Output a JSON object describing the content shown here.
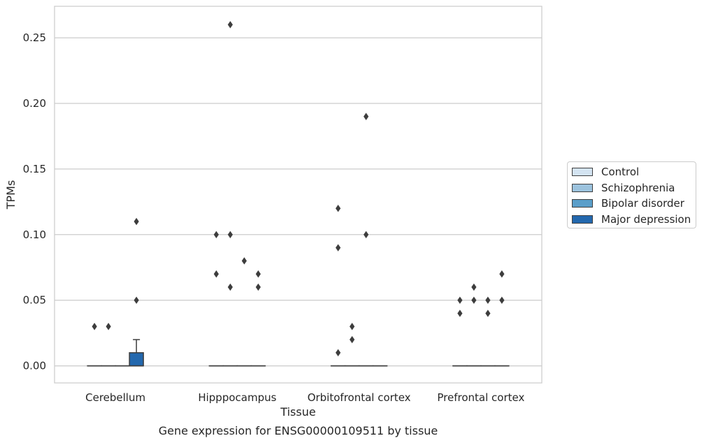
{
  "chart_data": {
    "type": "box",
    "title": "",
    "caption": "Gene expression for ENSG00000109511 by tissue",
    "xlabel": "Tissue",
    "ylabel": "TPMs",
    "ylim": [
      -0.013,
      0.274
    ],
    "yticks": [
      0.0,
      0.05,
      0.1,
      0.15,
      0.2,
      0.25
    ],
    "ytick_labels": [
      "0.00",
      "0.05",
      "0.10",
      "0.15",
      "0.20",
      "0.25"
    ],
    "grid": "horizontal",
    "legend_position": "right",
    "categories": [
      "Cerebellum",
      "Hipppocampus",
      "Orbitofrontal cortex",
      "Prefrontal cortex"
    ],
    "series": [
      {
        "name": "Control",
        "color": "#d4e4f2",
        "boxes": [
          {
            "q1": 0,
            "median": 0,
            "q3": 0,
            "whisker_low": 0,
            "whisker_high": 0,
            "outliers": [
              0.03
            ]
          },
          {
            "q1": 0,
            "median": 0,
            "q3": 0,
            "whisker_low": 0,
            "whisker_high": 0,
            "outliers": [
              0.07,
              0.1
            ]
          },
          {
            "q1": 0,
            "median": 0,
            "q3": 0,
            "whisker_low": 0,
            "whisker_high": 0,
            "outliers": [
              0.01,
              0.09,
              0.12
            ]
          },
          {
            "q1": 0,
            "median": 0,
            "q3": 0,
            "whisker_low": 0,
            "whisker_high": 0,
            "outliers": [
              0.04,
              0.05
            ]
          }
        ]
      },
      {
        "name": "Schizophrenia",
        "color": "#9cc3de",
        "boxes": [
          {
            "q1": 0,
            "median": 0,
            "q3": 0,
            "whisker_low": 0,
            "whisker_high": 0,
            "outliers": [
              0.03
            ]
          },
          {
            "q1": 0,
            "median": 0,
            "q3": 0,
            "whisker_low": 0,
            "whisker_high": 0,
            "outliers": [
              0.06,
              0.1,
              0.26
            ]
          },
          {
            "q1": 0,
            "median": 0,
            "q3": 0,
            "whisker_low": 0,
            "whisker_high": 0,
            "outliers": [
              0.02,
              0.03
            ]
          },
          {
            "q1": 0,
            "median": 0,
            "q3": 0,
            "whisker_low": 0,
            "whisker_high": 0,
            "outliers": [
              0.05,
              0.06
            ]
          }
        ]
      },
      {
        "name": "Bipolar disorder",
        "color": "#5a9ec9",
        "boxes": [
          {
            "q1": 0,
            "median": 0,
            "q3": 0,
            "whisker_low": 0,
            "whisker_high": 0,
            "outliers": []
          },
          {
            "q1": 0,
            "median": 0,
            "q3": 0,
            "whisker_low": 0,
            "whisker_high": 0,
            "outliers": [
              0.08
            ]
          },
          {
            "q1": 0,
            "median": 0,
            "q3": 0,
            "whisker_low": 0,
            "whisker_high": 0,
            "outliers": [
              0.1,
              0.19
            ]
          },
          {
            "q1": 0,
            "median": 0,
            "q3": 0,
            "whisker_low": 0,
            "whisker_high": 0,
            "outliers": [
              0.04,
              0.05
            ]
          }
        ]
      },
      {
        "name": "Major depression",
        "color": "#2368ae",
        "boxes": [
          {
            "q1": 0,
            "median": 0,
            "q3": 0.01,
            "whisker_low": 0,
            "whisker_high": 0.02,
            "outliers": [
              0.05,
              0.11
            ]
          },
          {
            "q1": 0,
            "median": 0,
            "q3": 0,
            "whisker_low": 0,
            "whisker_high": 0,
            "outliers": [
              0.06,
              0.07
            ]
          },
          {
            "q1": 0,
            "median": 0,
            "q3": 0,
            "whisker_low": 0,
            "whisker_high": 0,
            "outliers": []
          },
          {
            "q1": 0,
            "median": 0,
            "q3": 0,
            "whisker_low": 0,
            "whisker_high": 0,
            "outliers": [
              0.05,
              0.07
            ]
          }
        ]
      }
    ]
  }
}
